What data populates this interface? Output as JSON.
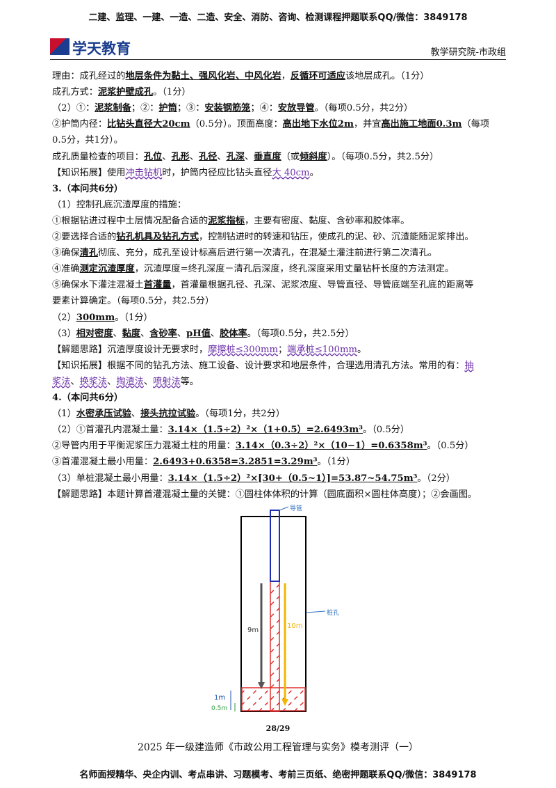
{
  "header": {
    "banner": "二建、监理、一建、一造、二造、安全、消防、咨询、检测课程押题联系QQ/微信：3849178",
    "logo": "学天教育",
    "dept": "教学研究院-市政组"
  },
  "body": [
    [
      {
        "text": "理由：成孔经过的"
      },
      {
        "text": "地层条件为黏土、强风化岩、中风化岩",
        "style": "u"
      },
      {
        "text": "，"
      },
      {
        "text": "反循环可适应",
        "style": "u"
      },
      {
        "text": "该地层成孔。（1分）"
      }
    ],
    [
      {
        "text": "成孔方式："
      },
      {
        "text": "泥浆护壁成孔",
        "style": "u"
      },
      {
        "text": "。（1分）"
      }
    ],
    [
      {
        "text": "（2）①："
      },
      {
        "text": "泥浆制备",
        "style": "u"
      },
      {
        "text": "；②："
      },
      {
        "text": "护筒",
        "style": "u"
      },
      {
        "text": "；③："
      },
      {
        "text": "安装钢筋笼",
        "style": "u"
      },
      {
        "text": "；④："
      },
      {
        "text": "安放导管",
        "style": "u"
      },
      {
        "text": "。（每项0.5分，共2分）"
      }
    ],
    [
      {
        "text": "②护筒内径："
      },
      {
        "text": "比钻头直径大20cm",
        "style": "u"
      },
      {
        "text": "（0.5分）。顶面高度："
      },
      {
        "text": "高出地下水位2m",
        "style": "u"
      },
      {
        "text": "，并宜"
      },
      {
        "text": "高出施工地面0.3m",
        "style": "u"
      },
      {
        "text": "（每项"
      }
    ],
    [
      {
        "text": "0.5分，共1分）。"
      }
    ],
    [
      {
        "text": "成孔质量检查的项目："
      },
      {
        "text": "孔位",
        "style": "u"
      },
      {
        "text": "、"
      },
      {
        "text": "孔形",
        "style": "u"
      },
      {
        "text": "、"
      },
      {
        "text": "孔径",
        "style": "u"
      },
      {
        "text": "、"
      },
      {
        "text": "孔深",
        "style": "u"
      },
      {
        "text": "、"
      },
      {
        "text": "垂直度",
        "style": "u"
      },
      {
        "text": "（或"
      },
      {
        "text": "倾斜度",
        "style": "u"
      },
      {
        "text": "）。（每项0.5分，共2.5分）"
      }
    ],
    [
      {
        "text": "【知识拓展】使用"
      },
      {
        "text": "冲击钻机",
        "style": "link"
      },
      {
        "text": "时，护筒内径应比钻头直径"
      },
      {
        "text": "大 40cm",
        "style": "link"
      },
      {
        "text": "。"
      }
    ],
    [
      {
        "text": "3.（本问共6分）",
        "style": "b"
      }
    ],
    [
      {
        "text": "（1）控制孔底沉渣厚度的措施："
      }
    ],
    [
      {
        "text": "①根据钻进过程中土层情况配备合适的"
      },
      {
        "text": "泥浆指标",
        "style": "u"
      },
      {
        "text": "，主要有密度、黏度、含砂率和胶体率。"
      }
    ],
    [
      {
        "text": "②要选择合适的"
      },
      {
        "text": "钻孔机具及钻孔方式",
        "style": "u"
      },
      {
        "text": "，控制钻进时的转速和钻压，使成孔的泥、砂、沉渣能随泥浆排出。"
      }
    ],
    [
      {
        "text": "③确保"
      },
      {
        "text": "清孔",
        "style": "u"
      },
      {
        "text": "彻底、充分，成孔至设计标高后进行第一次清孔，在混凝土灌注前进行第二次清孔。"
      }
    ],
    [
      {
        "text": "④准确"
      },
      {
        "text": "测定沉渣厚度",
        "style": "u"
      },
      {
        "text": "，沉渣厚度=终孔深度－清孔后深度，终孔深度采用丈量钻杆长度的方法测定。"
      }
    ],
    [
      {
        "text": "⑤确保水下灌注混凝土"
      },
      {
        "text": "首灌量",
        "style": "u"
      },
      {
        "text": "，首灌量根据孔径、孔深、泥浆浓度、导管直径、导管底端至孔底的距离等"
      }
    ],
    [
      {
        "text": "要素计算确定。（每项0.5分，共2.5分）"
      }
    ],
    [
      {
        "text": "（2）"
      },
      {
        "text": "300mm",
        "style": "u"
      },
      {
        "text": "。（1分）"
      }
    ],
    [
      {
        "text": "（3）"
      },
      {
        "text": "相对密度",
        "style": "u"
      },
      {
        "text": "、"
      },
      {
        "text": "黏度",
        "style": "u"
      },
      {
        "text": "、"
      },
      {
        "text": "含砂率",
        "style": "u"
      },
      {
        "text": "、"
      },
      {
        "text": "pH值",
        "style": "u"
      },
      {
        "text": "、"
      },
      {
        "text": "胶体率",
        "style": "u"
      },
      {
        "text": "。（每项0.5分，共2.5分）"
      }
    ],
    [
      {
        "text": "【解题思路】沉渣厚度设计无要求时，"
      },
      {
        "text": "摩擦桩≤300mm",
        "style": "link"
      },
      {
        "text": "；"
      },
      {
        "text": "端承桩≤100mm",
        "style": "link"
      },
      {
        "text": "。"
      }
    ],
    [
      {
        "text": "【知识拓展】根据不同的钻孔方法、施工设备、设计要求和地层条件，合理选用清孔方法。常用的有："
      },
      {
        "text": "抽",
        "style": "link"
      }
    ],
    [
      {
        "text": "浆法",
        "style": "link"
      },
      {
        "text": "、"
      },
      {
        "text": "换浆法",
        "style": "link"
      },
      {
        "text": "、"
      },
      {
        "text": "掏渣法",
        "style": "link"
      },
      {
        "text": "、"
      },
      {
        "text": "喷射法",
        "style": "link"
      },
      {
        "text": "等。"
      }
    ],
    [
      {
        "text": "4.（本问共6分）",
        "style": "b"
      }
    ],
    [
      {
        "text": "（1）"
      },
      {
        "text": "水密承压试验",
        "style": "u"
      },
      {
        "text": "、"
      },
      {
        "text": "接头抗拉试验",
        "style": "u"
      },
      {
        "text": "。（每项1分，共2分）"
      }
    ],
    [
      {
        "text": "（2）①首灌孔内混凝土量："
      },
      {
        "text": "3.14×（1.5÷2）²×（1+0.5）=2.6493m³",
        "style": "u"
      },
      {
        "text": "。（0.5分）"
      }
    ],
    [
      {
        "text": "②导管内用于平衡泥浆压力混凝土柱的用量："
      },
      {
        "text": "3.14×（0.3÷2）²×（10−1）=0.6358m³",
        "style": "u"
      },
      {
        "text": "。（0.5分）"
      }
    ],
    [
      {
        "text": "③首灌混凝土最小用量："
      },
      {
        "text": "2.6493+0.6358=3.2851=3.29m³",
        "style": "u"
      },
      {
        "text": "。（1分）"
      }
    ],
    [
      {
        "text": "（3）单桩混凝土最小用量："
      },
      {
        "text": "3.14×（1.5÷2）²×[30+（0.5~1）]=53.87~54.75m³",
        "style": "u"
      },
      {
        "text": "。（2分）"
      }
    ],
    [
      {
        "text": "【解题思路】本题计算首灌混凝土量的关键：①圆柱体体积的计算（圆底面积×圆柱体高度）；②会画图。"
      }
    ]
  ],
  "diagram": {
    "pipe": "导管",
    "hole": "桩孔",
    "left_len": "9m",
    "right_len": "10m",
    "bottom_1": "1m",
    "bottom_2": "0.5m"
  },
  "footer": {
    "page": "28/29",
    "title": "2025 年一级建造师《市政公用工程管理与实务》模考测评（一）",
    "banner": "名师面授精华、央企内训、考点串讲、习题模考、考前三页纸、绝密押题联系QQ/微信：3849178"
  }
}
